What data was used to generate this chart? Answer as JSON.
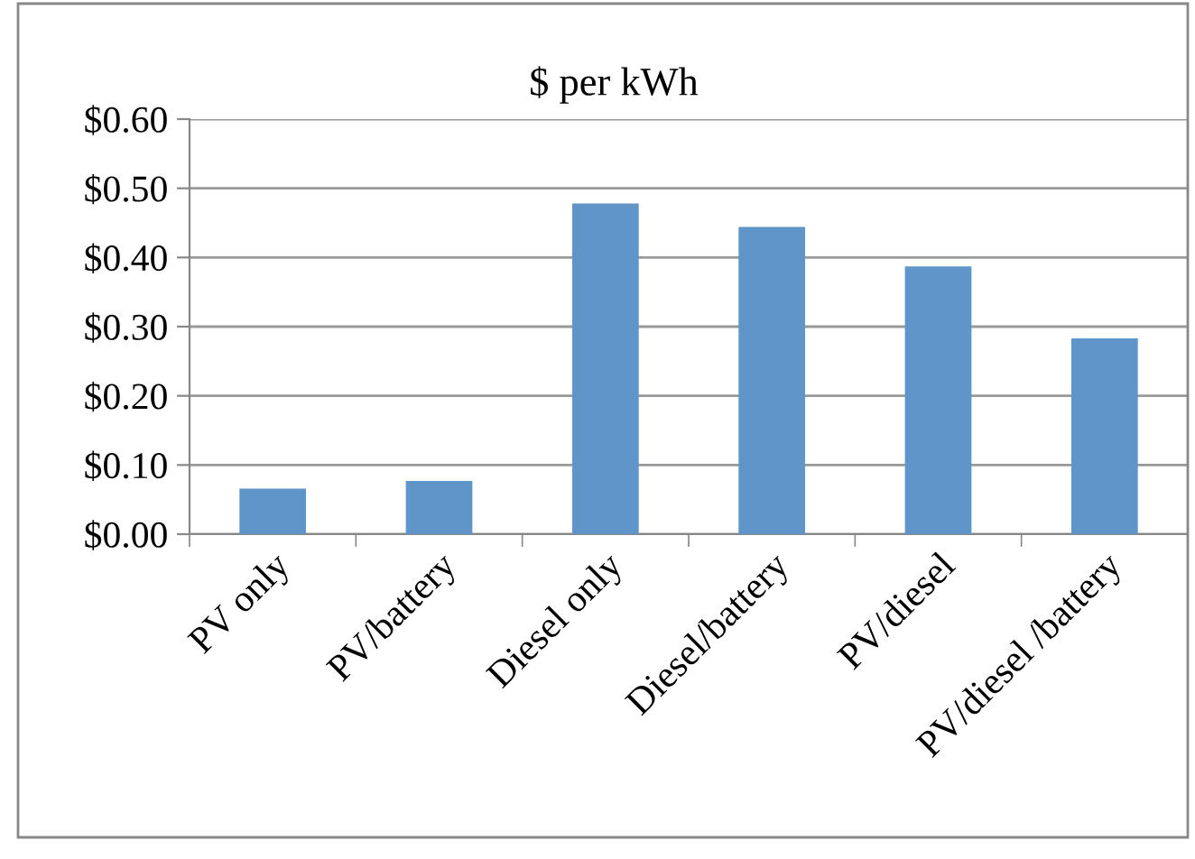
{
  "chart_data": {
    "type": "bar",
    "title": "$ per kWh",
    "categories": [
      "PV only",
      "PV/battery",
      "Diesel only",
      "Diesel/battery",
      "PV/diesel",
      "PV/diesel /battery"
    ],
    "values": [
      0.066,
      0.077,
      0.478,
      0.444,
      0.387,
      0.283
    ],
    "color": "#5f95c8",
    "ylim": [
      0,
      0.6
    ],
    "yticks": [
      {
        "value": 0,
        "label": "$0.00"
      },
      {
        "value": 0.1,
        "label": "$0.10"
      },
      {
        "value": 0.2,
        "label": "$0.20"
      },
      {
        "value": 0.3,
        "label": "$0.30"
      },
      {
        "value": 0.4,
        "label": "$0.40"
      },
      {
        "value": 0.5,
        "label": "$0.50"
      },
      {
        "value": 0.6,
        "label": "$0.60"
      }
    ],
    "grid": "y"
  }
}
